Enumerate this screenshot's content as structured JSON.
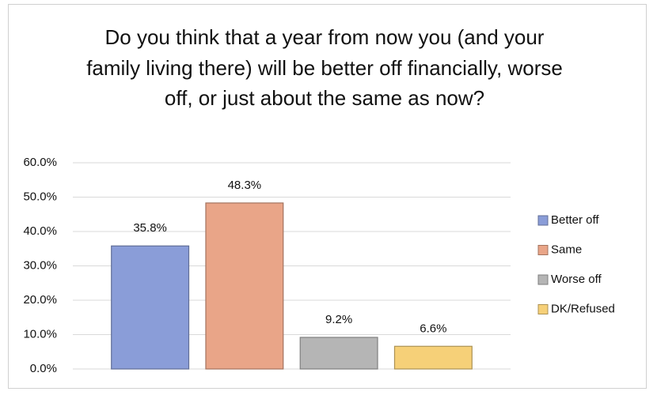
{
  "chart_data": {
    "type": "bar",
    "title": "Do you think that a year from now you (and your family living there) will be better off financially, worse off, or just about the same as now?",
    "categories": [
      null
    ],
    "series": [
      {
        "name": "Better off",
        "color": "#8a9dd8",
        "values": [
          35.8
        ],
        "value_labels": [
          "35.8%"
        ]
      },
      {
        "name": "Same",
        "color": "#e9a588",
        "values": [
          48.3
        ],
        "value_labels": [
          "48.3%"
        ]
      },
      {
        "name": "Worse off",
        "color": "#b5b5b5",
        "values": [
          9.2
        ],
        "value_labels": [
          "9.2%"
        ]
      },
      {
        "name": "DK/Refused",
        "color": "#f6d078",
        "values": [
          6.6
        ],
        "value_labels": [
          "6.6%"
        ]
      }
    ],
    "ylim": [
      0,
      60
    ],
    "yticks": [
      {
        "value": 0,
        "label": "0.0%"
      },
      {
        "value": 10,
        "label": "10.0%"
      },
      {
        "value": 20,
        "label": "20.0%"
      },
      {
        "value": 30,
        "label": "30.0%"
      },
      {
        "value": 40,
        "label": "40.0%"
      },
      {
        "value": 50,
        "label": "50.0%"
      },
      {
        "value": 60,
        "label": "60.0%"
      }
    ],
    "grid": true,
    "legend": "right"
  }
}
